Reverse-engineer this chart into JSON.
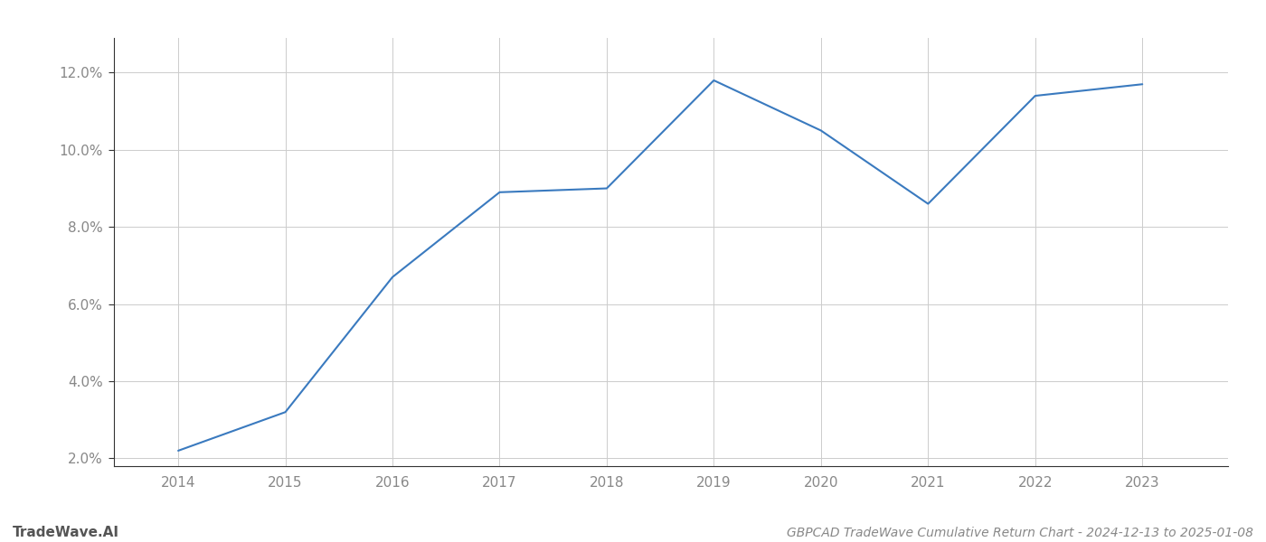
{
  "x": [
    2014,
    2015,
    2016,
    2017,
    2018,
    2019,
    2020,
    2021,
    2022,
    2023
  ],
  "y": [
    2.2,
    3.2,
    6.7,
    8.9,
    9.0,
    11.8,
    10.5,
    8.6,
    11.4,
    11.7
  ],
  "line_color": "#3a7abf",
  "line_width": 1.5,
  "background_color": "#ffffff",
  "grid_color": "#cccccc",
  "tick_label_color": "#888888",
  "bottom_left_text": "TradeWave.AI",
  "bottom_right_text": "GBPCAD TradeWave Cumulative Return Chart - 2024-12-13 to 2025-01-08",
  "xlim": [
    2013.4,
    2023.8
  ],
  "ylim": [
    1.8,
    12.9
  ],
  "yticks": [
    2.0,
    4.0,
    6.0,
    8.0,
    10.0,
    12.0
  ],
  "xticks": [
    2014,
    2015,
    2016,
    2017,
    2018,
    2019,
    2020,
    2021,
    2022,
    2023
  ],
  "figsize": [
    14.0,
    6.0
  ],
  "dpi": 100,
  "spine_color": "#333333",
  "bottom_left_fontsize": 11,
  "bottom_right_fontsize": 10,
  "tick_fontsize": 11
}
